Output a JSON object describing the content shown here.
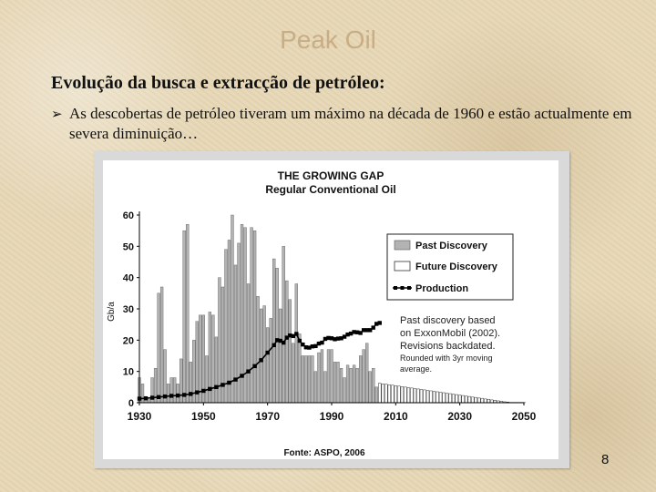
{
  "slide": {
    "title": "Peak Oil",
    "subtitle": "Evolução da busca e extracção de petróleo:",
    "bullet": "As descobertas de petróleo tiveram um máximo na década de 1960 e estão actualmente em severa diminuição…",
    "bullet_icon": "arrow-bullet-icon",
    "page_number": "8"
  },
  "chart_data": {
    "type": "bar",
    "title": "THE GROWING GAP",
    "subtitle": "Regular Conventional Oil",
    "ylabel": "Gb/a",
    "xlabel": "",
    "ylim": [
      0,
      60
    ],
    "xlim": [
      1930,
      2050
    ],
    "y_ticks": [
      "0",
      "10",
      "20",
      "30",
      "40",
      "50",
      "60"
    ],
    "x_ticks": [
      "1930",
      "1950",
      "1970",
      "1990",
      "2010",
      "2030",
      "2050"
    ],
    "legend_position": "top-right",
    "legend": [
      "Past Discovery",
      "Future Discovery",
      "Production"
    ],
    "colors": {
      "past": "#b3b3b3",
      "future": "#ffffff",
      "production": "#000000",
      "frame": "#000000"
    },
    "annotation": [
      "Past discovery based",
      "on ExxonMobil (2002).",
      "Revisions backdated.",
      "Rounded with 3yr moving",
      "average."
    ],
    "source": "Fonte: ASPO, 2006",
    "series": [
      {
        "name": "Past Discovery",
        "x": [
          1930,
          1931,
          1932,
          1933,
          1934,
          1935,
          1936,
          1937,
          1938,
          1939,
          1940,
          1941,
          1942,
          1943,
          1944,
          1945,
          1946,
          1947,
          1948,
          1949,
          1950,
          1951,
          1952,
          1953,
          1954,
          1955,
          1956,
          1957,
          1958,
          1959,
          1960,
          1961,
          1962,
          1963,
          1964,
          1965,
          1966,
          1967,
          1968,
          1969,
          1970,
          1971,
          1972,
          1973,
          1974,
          1975,
          1976,
          1977,
          1978,
          1979,
          1980,
          1981,
          1982,
          1983,
          1984,
          1985,
          1986,
          1987,
          1988,
          1989,
          1990,
          1991,
          1992,
          1993,
          1994,
          1995,
          1996,
          1997,
          1998,
          1999,
          2000,
          2001,
          2002,
          2003,
          2004,
          2005
        ],
        "values": [
          8,
          6,
          2,
          1,
          8,
          11,
          35,
          37,
          17,
          6,
          8,
          8,
          6,
          14,
          55,
          57,
          13,
          20,
          26,
          28,
          28,
          15,
          29,
          28,
          21,
          40,
          37,
          49,
          52,
          60,
          44,
          51,
          57,
          56,
          38,
          56,
          55,
          34,
          30,
          31,
          24,
          27,
          46,
          43,
          30,
          50,
          39,
          33,
          19,
          38,
          22,
          15,
          15,
          15,
          15,
          10,
          16,
          17,
          10,
          17,
          17,
          13,
          13,
          11,
          8,
          12,
          11,
          12,
          11,
          15,
          17,
          19,
          10,
          11,
          5,
          6
        ]
      },
      {
        "name": "Future Discovery",
        "x": [
          2005,
          2006,
          2007,
          2008,
          2009,
          2010,
          2011,
          2012,
          2013,
          2014,
          2015,
          2016,
          2017,
          2018,
          2019,
          2020,
          2021,
          2022,
          2023,
          2024,
          2025,
          2026,
          2027,
          2028,
          2029,
          2030,
          2031,
          2032,
          2033,
          2034,
          2035,
          2036,
          2037,
          2038,
          2039,
          2040,
          2041,
          2042,
          2043,
          2044,
          2045,
          2046,
          2047,
          2048,
          2049,
          2050
        ],
        "values": [
          6.2,
          6.0,
          5.9,
          5.7,
          5.6,
          5.4,
          5.3,
          5.1,
          5.0,
          4.8,
          4.7,
          4.5,
          4.4,
          4.2,
          4.1,
          3.9,
          3.8,
          3.6,
          3.5,
          3.3,
          3.2,
          3.0,
          2.9,
          2.7,
          2.6,
          2.4,
          2.3,
          2.1,
          2.0,
          1.8,
          1.7,
          1.5,
          1.4,
          1.2,
          1.1,
          0.9,
          0.8,
          0.6,
          0.5,
          0.3,
          0.2,
          0.1,
          0.1,
          0.1,
          0.1,
          0.1
        ]
      },
      {
        "name": "Production",
        "x": [
          1930,
          1932,
          1934,
          1936,
          1938,
          1940,
          1942,
          1944,
          1946,
          1948,
          1950,
          1952,
          1954,
          1956,
          1958,
          1960,
          1962,
          1964,
          1966,
          1968,
          1970,
          1972,
          1973,
          1974,
          1975,
          1976,
          1977,
          1978,
          1979,
          1980,
          1981,
          1982,
          1983,
          1984,
          1985,
          1986,
          1987,
          1988,
          1989,
          1990,
          1991,
          1992,
          1993,
          1994,
          1995,
          1996,
          1997,
          1998,
          1999,
          2000,
          2001,
          2002,
          2003,
          2004,
          2005
        ],
        "values": [
          1.3,
          1.4,
          1.6,
          1.8,
          2.0,
          2.2,
          2.3,
          2.5,
          2.8,
          3.3,
          3.8,
          4.4,
          5.0,
          5.7,
          6.4,
          7.4,
          8.6,
          10.0,
          11.7,
          13.6,
          16.0,
          18.4,
          20.0,
          19.8,
          19.2,
          20.8,
          21.5,
          21.3,
          22.0,
          19.8,
          18.6,
          17.7,
          17.6,
          18.0,
          18.1,
          18.9,
          19.2,
          20.4,
          20.7,
          20.6,
          20.3,
          20.5,
          20.6,
          21.1,
          21.8,
          22.1,
          22.6,
          22.5,
          22.3,
          23.2,
          23.2,
          23.2,
          24.0,
          25.2,
          25.5
        ]
      }
    ]
  }
}
